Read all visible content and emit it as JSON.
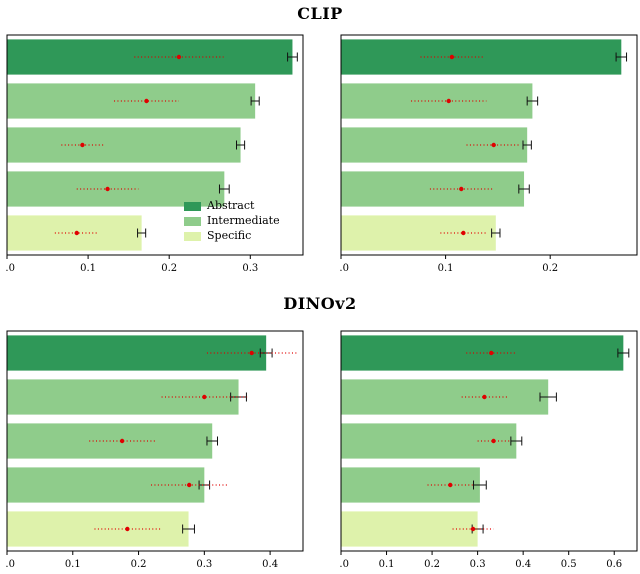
{
  "figure": {
    "row_titles": [
      "CLIP",
      "DINOv2"
    ],
    "legend": {
      "entries": [
        {
          "label": "Abstract",
          "color": "#2f9858"
        },
        {
          "label": "Intermediate",
          "color": "#8fcc8b"
        },
        {
          "label": "Specific",
          "color": "#def2ab"
        }
      ]
    },
    "marker_color": "#e00000",
    "error_color": "#111111"
  },
  "chart_data": [
    {
      "type": "bar",
      "orientation": "horizontal",
      "panel": "clip-left",
      "title": "CLIP",
      "categories": [
        "Abstract",
        "Intermediate",
        "Intermediate",
        "Intermediate",
        "Specific"
      ],
      "values": [
        0.352,
        0.306,
        0.288,
        0.268,
        0.166
      ],
      "bar_errors": [
        0.006,
        0.005,
        0.005,
        0.006,
        0.005
      ],
      "marker_means": [
        0.212,
        0.172,
        0.093,
        0.124,
        0.086
      ],
      "marker_errors": [
        0.055,
        0.04,
        0.026,
        0.038,
        0.027
      ],
      "xlim": [
        0,
        0.365
      ],
      "xticks": [
        0.0,
        0.1,
        0.2,
        0.3
      ],
      "legend_position": "lower center-right"
    },
    {
      "type": "bar",
      "orientation": "horizontal",
      "panel": "clip-right",
      "title": "CLIP",
      "categories": [
        "Abstract",
        "Intermediate",
        "Intermediate",
        "Intermediate",
        "Specific"
      ],
      "values": [
        0.268,
        0.183,
        0.178,
        0.175,
        0.148
      ],
      "bar_errors": [
        0.005,
        0.005,
        0.004,
        0.005,
        0.004
      ],
      "marker_means": [
        0.106,
        0.103,
        0.146,
        0.115,
        0.117
      ],
      "marker_errors": [
        0.03,
        0.036,
        0.026,
        0.03,
        0.022
      ],
      "xlim": [
        0,
        0.283
      ],
      "xticks": [
        0.0,
        0.1,
        0.2
      ]
    },
    {
      "type": "bar",
      "orientation": "horizontal",
      "panel": "dinov2-left",
      "title": "DINOv2",
      "categories": [
        "Abstract",
        "Intermediate",
        "Intermediate",
        "Intermediate",
        "Specific"
      ],
      "values": [
        0.394,
        0.352,
        0.312,
        0.3,
        0.276
      ],
      "bar_errors": [
        0.009,
        0.012,
        0.008,
        0.008,
        0.009
      ],
      "marker_means": [
        0.372,
        0.3,
        0.175,
        0.277,
        0.183
      ],
      "marker_errors": [
        0.068,
        0.065,
        0.05,
        0.058,
        0.05
      ],
      "xlim": [
        0,
        0.45
      ],
      "xticks": [
        0.0,
        0.1,
        0.2,
        0.3,
        0.4
      ]
    },
    {
      "type": "bar",
      "orientation": "horizontal",
      "panel": "dinov2-right",
      "title": "DINOv2",
      "categories": [
        "Abstract",
        "Intermediate",
        "Intermediate",
        "Intermediate",
        "Specific"
      ],
      "values": [
        0.62,
        0.455,
        0.385,
        0.305,
        0.3
      ],
      "bar_errors": [
        0.012,
        0.018,
        0.012,
        0.014,
        0.012
      ],
      "marker_means": [
        0.33,
        0.315,
        0.335,
        0.24,
        0.29
      ],
      "marker_errors": [
        0.055,
        0.05,
        0.035,
        0.05,
        0.045
      ],
      "xlim": [
        0,
        0.65
      ],
      "xticks": [
        0.0,
        0.1,
        0.2,
        0.3,
        0.4,
        0.5,
        0.6
      ]
    }
  ]
}
